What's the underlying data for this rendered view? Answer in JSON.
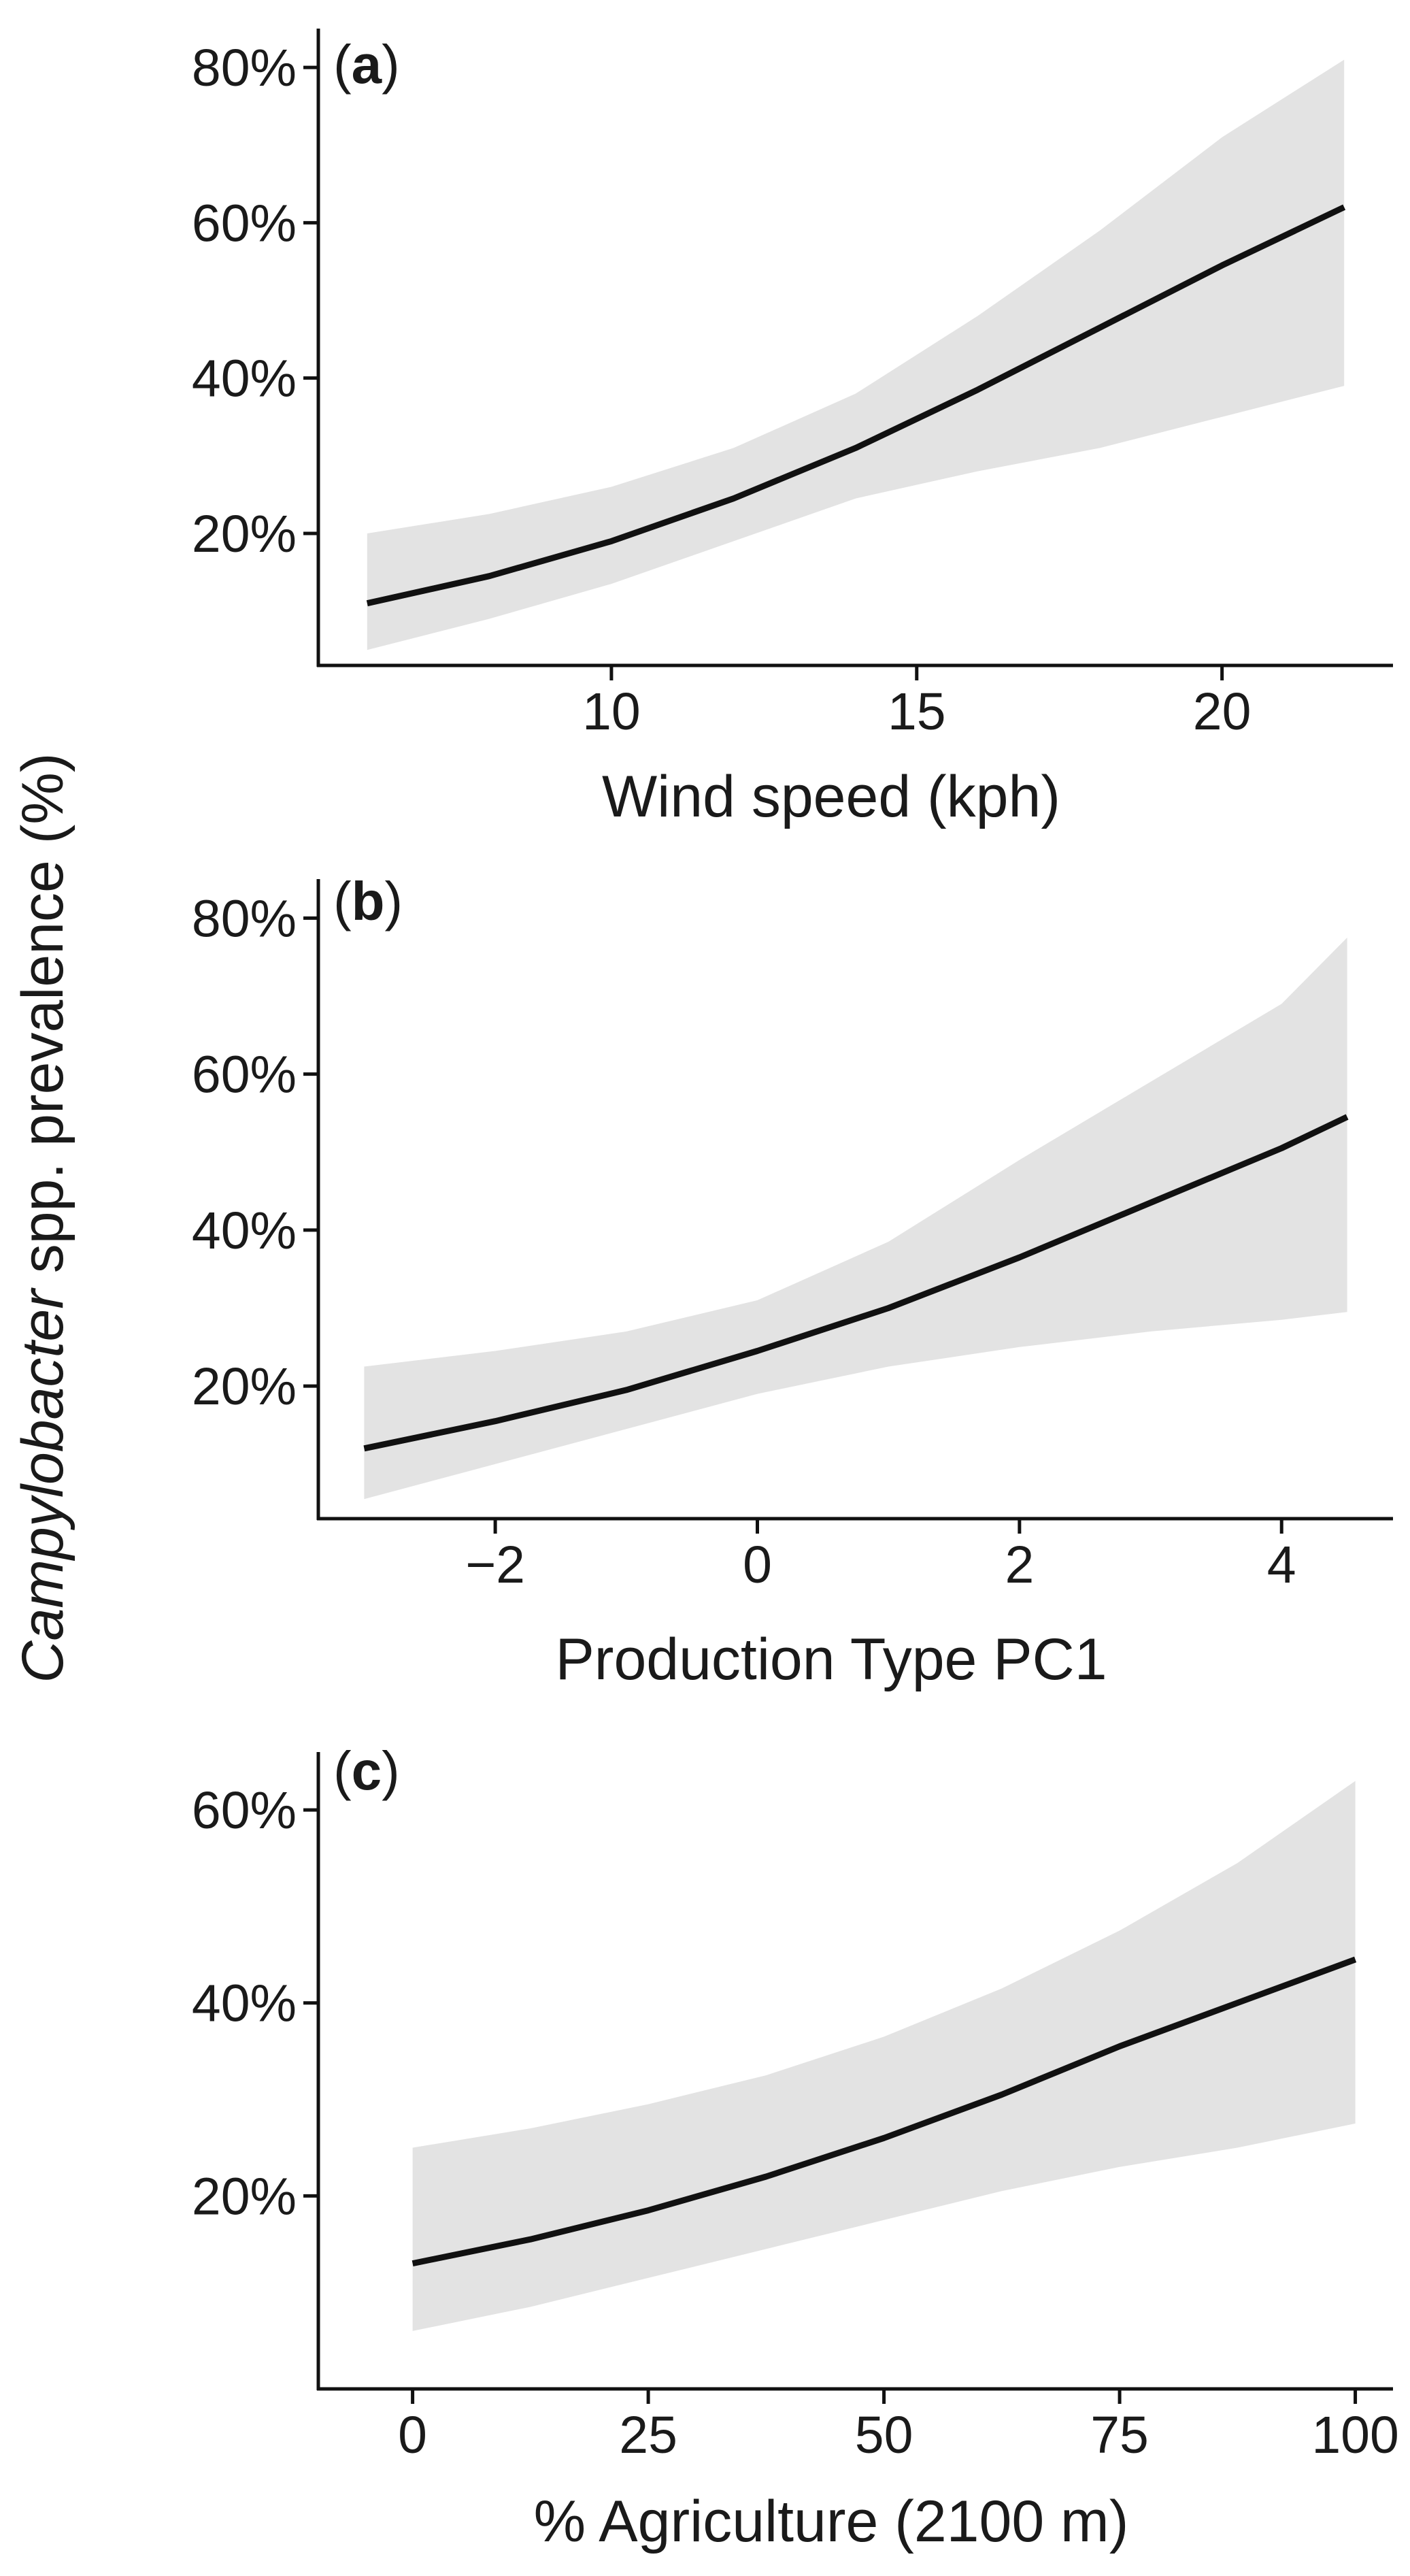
{
  "chart_data": {
    "type": "line",
    "shared_ylabel": {
      "italic_part": "Campylobacter",
      "rest": " spp. prevalence (%)"
    },
    "colors": {
      "line": "#111111",
      "band": "#e3e3e3",
      "axis": "#111111"
    },
    "panels": [
      {
        "id": "a",
        "panel_label": {
          "open": "(",
          "letter": "a",
          "close": ")"
        },
        "xlabel": "Wind speed (kph)",
        "xlim": [
          5.2,
          22.8
        ],
        "ylim": [
          0.03,
          0.85
        ],
        "xticks": [
          {
            "value": 10,
            "label": "10"
          },
          {
            "value": 15,
            "label": "15"
          },
          {
            "value": 20,
            "label": "20"
          }
        ],
        "yticks": [
          {
            "value": 0.2,
            "label": "20%"
          },
          {
            "value": 0.4,
            "label": "40%"
          },
          {
            "value": 0.6,
            "label": "60%"
          },
          {
            "value": 0.8,
            "label": "80%"
          }
        ],
        "x": [
          6,
          8,
          10,
          12,
          14,
          16,
          18,
          20,
          22
        ],
        "fit": [
          0.11,
          0.145,
          0.19,
          0.245,
          0.31,
          0.385,
          0.465,
          0.545,
          0.62
        ],
        "lower": [
          0.05,
          0.09,
          0.135,
          0.19,
          0.245,
          0.28,
          0.31,
          0.35,
          0.39
        ],
        "upper": [
          0.2,
          0.225,
          0.26,
          0.31,
          0.38,
          0.48,
          0.59,
          0.71,
          0.81
        ]
      },
      {
        "id": "b",
        "panel_label": {
          "open": "(",
          "letter": "b",
          "close": ")"
        },
        "xlabel": "Production Type PC1",
        "xlim": [
          -3.35,
          4.85
        ],
        "ylim": [
          0.03,
          0.85
        ],
        "xticks": [
          {
            "value": -2,
            "label": "−2"
          },
          {
            "value": 0,
            "label": "0"
          },
          {
            "value": 2,
            "label": "2"
          },
          {
            "value": 4,
            "label": "4"
          }
        ],
        "yticks": [
          {
            "value": 0.2,
            "label": "20%"
          },
          {
            "value": 0.4,
            "label": "40%"
          },
          {
            "value": 0.6,
            "label": "60%"
          },
          {
            "value": 0.8,
            "label": "80%"
          }
        ],
        "x": [
          -3,
          -2,
          -1,
          0,
          1,
          2,
          3,
          4,
          4.5
        ],
        "fit": [
          0.12,
          0.155,
          0.195,
          0.245,
          0.3,
          0.365,
          0.435,
          0.505,
          0.545
        ],
        "lower": [
          0.055,
          0.1,
          0.145,
          0.19,
          0.225,
          0.25,
          0.27,
          0.285,
          0.295
        ],
        "upper": [
          0.225,
          0.245,
          0.27,
          0.31,
          0.385,
          0.49,
          0.59,
          0.69,
          0.775
        ]
      },
      {
        "id": "c",
        "panel_label": {
          "open": "(",
          "letter": "c",
          "close": ")"
        },
        "xlabel": "% Agriculture (2100 m)",
        "xlim": [
          -10,
          104
        ],
        "ylim": [
          0.0,
          0.66
        ],
        "xticks": [
          {
            "value": 0,
            "label": "0"
          },
          {
            "value": 25,
            "label": "25"
          },
          {
            "value": 50,
            "label": "50"
          },
          {
            "value": 75,
            "label": "75"
          },
          {
            "value": 100,
            "label": "100"
          }
        ],
        "yticks": [
          {
            "value": 0.2,
            "label": "20%"
          },
          {
            "value": 0.4,
            "label": "40%"
          },
          {
            "value": 0.6,
            "label": "60%"
          }
        ],
        "x": [
          0,
          12.5,
          25,
          37.5,
          50,
          62.5,
          75,
          87.5,
          100
        ],
        "fit": [
          0.13,
          0.155,
          0.185,
          0.22,
          0.26,
          0.305,
          0.355,
          0.4,
          0.445
        ],
        "lower": [
          0.06,
          0.085,
          0.115,
          0.145,
          0.175,
          0.205,
          0.23,
          0.25,
          0.275
        ],
        "upper": [
          0.25,
          0.27,
          0.295,
          0.325,
          0.365,
          0.415,
          0.475,
          0.545,
          0.63
        ]
      }
    ]
  }
}
